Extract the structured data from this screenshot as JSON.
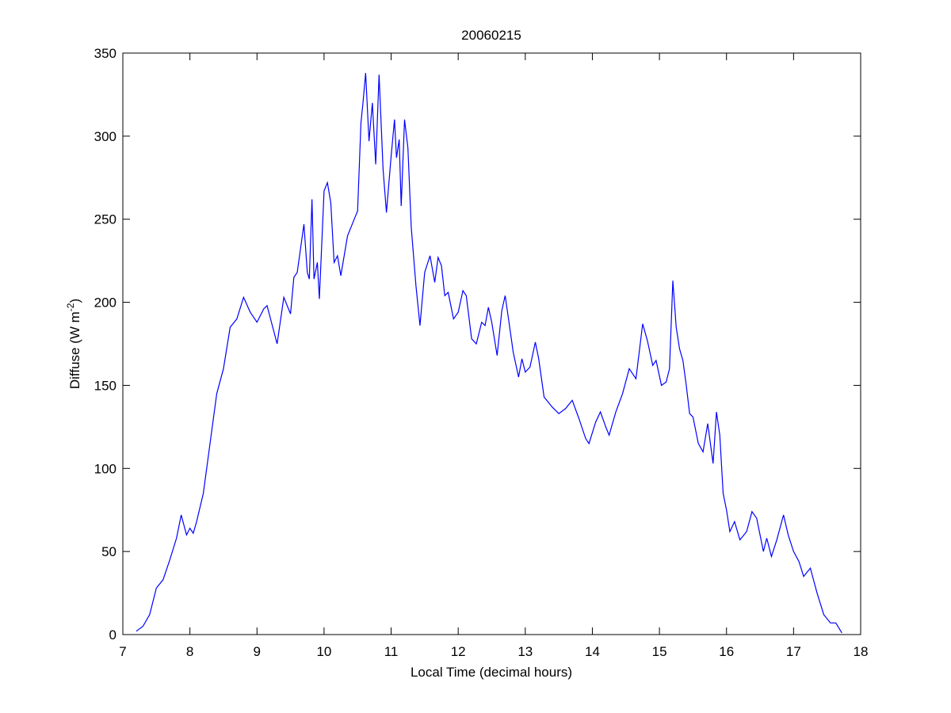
{
  "chart_data": {
    "type": "line",
    "title": "20060215",
    "xlabel": "Local Time (decimal hours)",
    "ylabel": {
      "main": "Diffuse (W m",
      "sup": "-2",
      "end": ")"
    },
    "xlim": [
      7,
      18
    ],
    "xticks": [
      7,
      8,
      9,
      10,
      11,
      12,
      13,
      14,
      15,
      16,
      17,
      18
    ],
    "ylim": [
      0,
      350
    ],
    "yticks": [
      0,
      50,
      100,
      150,
      200,
      250,
      300,
      350
    ],
    "grid": false,
    "color": "#0000ff",
    "x": [
      7.2,
      7.3,
      7.4,
      7.5,
      7.6,
      7.7,
      7.8,
      7.87,
      7.95,
      8.0,
      8.05,
      8.1,
      8.2,
      8.3,
      8.4,
      8.5,
      8.6,
      8.7,
      8.8,
      8.9,
      9.0,
      9.1,
      9.15,
      9.3,
      9.4,
      9.5,
      9.55,
      9.6,
      9.7,
      9.75,
      9.78,
      9.82,
      9.85,
      9.9,
      9.93,
      10.0,
      10.05,
      10.1,
      10.15,
      10.2,
      10.25,
      10.35,
      10.45,
      10.5,
      10.55,
      10.58,
      10.62,
      10.67,
      10.72,
      10.77,
      10.82,
      10.88,
      10.93,
      11.0,
      11.05,
      11.08,
      11.12,
      11.15,
      11.2,
      11.25,
      11.3,
      11.37,
      11.43,
      11.5,
      11.58,
      11.65,
      11.7,
      11.75,
      11.8,
      11.85,
      11.93,
      12.0,
      12.07,
      12.12,
      12.2,
      12.27,
      12.35,
      12.4,
      12.45,
      12.5,
      12.58,
      12.65,
      12.7,
      12.75,
      12.82,
      12.9,
      12.95,
      13.0,
      13.07,
      13.15,
      13.2,
      13.28,
      13.4,
      13.5,
      13.6,
      13.7,
      13.8,
      13.9,
      13.95,
      14.05,
      14.12,
      14.2,
      14.25,
      14.35,
      14.45,
      14.55,
      14.65,
      14.75,
      14.82,
      14.9,
      14.95,
      15.03,
      15.1,
      15.15,
      15.2,
      15.25,
      15.3,
      15.35,
      15.4,
      15.45,
      15.5,
      15.58,
      15.65,
      15.72,
      15.8,
      15.85,
      15.9,
      15.95,
      16.0,
      16.05,
      16.12,
      16.2,
      16.3,
      16.38,
      16.45,
      16.55,
      16.6,
      16.67,
      16.75,
      16.85,
      16.92,
      17.0,
      17.08,
      17.15,
      17.25,
      17.35,
      17.45,
      17.55,
      17.63,
      17.72
    ],
    "values": [
      2,
      5,
      12,
      28,
      33,
      45,
      58,
      72,
      60,
      64,
      61,
      68,
      85,
      115,
      145,
      160,
      185,
      190,
      203,
      194,
      188,
      196,
      198,
      175,
      203,
      193,
      215,
      218,
      247,
      218,
      214,
      262,
      214,
      224,
      202,
      267,
      272,
      260,
      224,
      228,
      216,
      240,
      250,
      255,
      308,
      320,
      338,
      297,
      320,
      283,
      337,
      280,
      254,
      288,
      310,
      287,
      298,
      258,
      310,
      293,
      245,
      210,
      186,
      218,
      228,
      212,
      227,
      222,
      204,
      206,
      190,
      194,
      207,
      204,
      178,
      175,
      188,
      186,
      197,
      188,
      168,
      195,
      204,
      190,
      170,
      155,
      166,
      158,
      161,
      176,
      166,
      143,
      137,
      133,
      136,
      141,
      130,
      118,
      115,
      128,
      134,
      125,
      120,
      134,
      145,
      160,
      154,
      187,
      177,
      162,
      165,
      150,
      152,
      160,
      213,
      185,
      172,
      165,
      150,
      133,
      131,
      115,
      110,
      127,
      103,
      134,
      120,
      85,
      75,
      62,
      68,
      57,
      62,
      74,
      70,
      50,
      58,
      47,
      57,
      72,
      60,
      50,
      44,
      35,
      40,
      25,
      12,
      7,
      7,
      1
    ]
  }
}
